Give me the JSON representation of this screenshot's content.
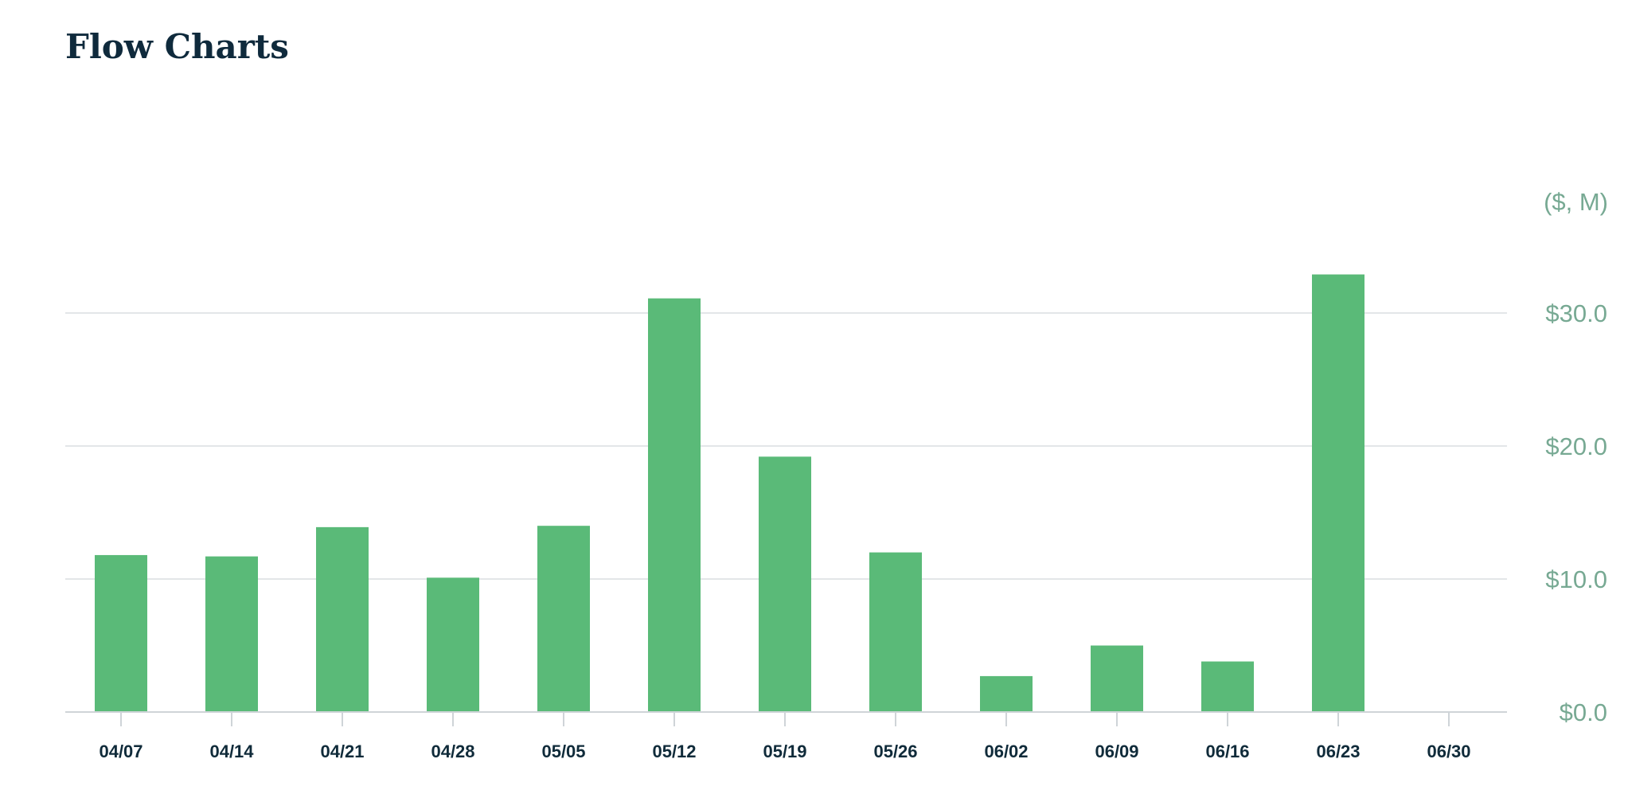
{
  "page": {
    "title": "Flow Charts"
  },
  "chart_data": {
    "type": "bar",
    "title": "Flow Charts",
    "unit_label": "($, M)",
    "xlabel": "",
    "ylabel": "",
    "categories": [
      "04/07",
      "04/14",
      "04/21",
      "04/28",
      "05/05",
      "05/12",
      "05/19",
      "05/26",
      "06/02",
      "06/09",
      "06/16",
      "06/23",
      "06/30"
    ],
    "series": [
      {
        "values": [
          11.8,
          11.7,
          13.9,
          10.1,
          14.0,
          31.1,
          19.2,
          12.0,
          2.7,
          5.0,
          3.8,
          32.9,
          null
        ]
      }
    ],
    "ylim": [
      0,
      30
    ],
    "y_ticks": [
      {
        "value": 0,
        "label": "$0.0"
      },
      {
        "value": 10,
        "label": "$10.0"
      },
      {
        "value": 20,
        "label": "$20.0"
      },
      {
        "value": 30,
        "label": "$30.0"
      }
    ],
    "y_axis_position": "right",
    "grid": true,
    "legend": "none",
    "colors": {
      "bar": "#5aba78",
      "grid": "#e3e6e8",
      "axis": "#cfd4d8",
      "tick_text": "#77a993",
      "x_tick_text": "#102b3a",
      "title": "#0f2a3c"
    }
  }
}
